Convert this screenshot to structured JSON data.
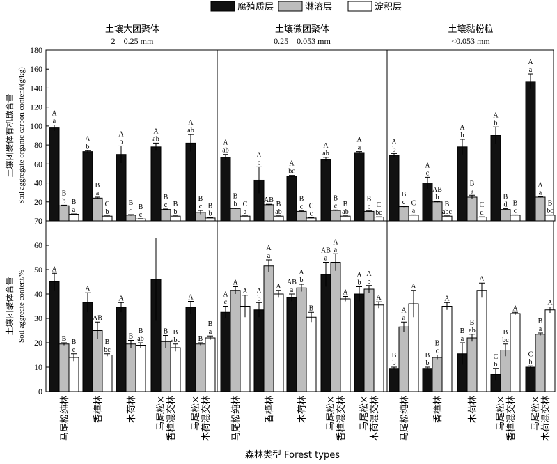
{
  "legend": [
    {
      "label": "腐殖质层",
      "color": "#111111"
    },
    {
      "label": "淋溶层",
      "color": "#bdbdbd"
    },
    {
      "label": "淀积层",
      "color": "#ffffff"
    }
  ],
  "panels": [
    {
      "title": "土壤大团聚体",
      "range": "2—0.25 mm"
    },
    {
      "title": "土壤微团聚体",
      "range": "0.25—0.053 mm"
    },
    {
      "title": "土壤黏粉粒",
      "range": "<0.053 mm"
    }
  ],
  "x_axis_title": "森林类型 Forest types",
  "chart_data": [
    {
      "type": "bar",
      "ylabel_cn": "土壤团聚体有机碳含量",
      "ylabel_en": "Soil aggregate organic carbon content/(g/kg)",
      "ylim": [
        0,
        180
      ],
      "yticks": [
        0,
        20,
        40,
        60,
        80,
        100,
        120,
        140,
        160,
        180
      ],
      "groups": [
        "土壤大团聚体",
        "土壤微团聚体",
        "土壤黏粉粒"
      ],
      "categories": [
        "马尾松纯林",
        "香樟林",
        "木荷林",
        "马尾松×香樟混交林",
        "马尾松×木荷混交林"
      ],
      "series": [
        {
          "name": "腐殖质层",
          "values": [
            [
              98,
              73,
              70,
              78,
              82
            ],
            [
              67,
              43,
              47,
              65,
              72
            ],
            [
              69,
              40,
              78,
              90,
              147
            ]
          ],
          "errors": [
            [
              3,
              1,
              9,
              4,
              9
            ],
            [
              3,
              14,
              1,
              2,
              1
            ],
            [
              2,
              6,
              8,
              9,
              8
            ]
          ]
        },
        {
          "name": "淋溶层",
          "values": [
            [
              16,
              24,
              6,
              12,
              9
            ],
            [
              13,
              17,
              10,
              11,
              10
            ],
            [
              15,
              20,
              25,
              12,
              25
            ]
          ],
          "errors": [
            [
              0.6,
              1,
              0.6,
              0.5,
              2
            ],
            [
              0.5,
              0.5,
              0.5,
              0.5,
              0.5
            ],
            [
              0.5,
              0.5,
              2,
              0.8,
              0.5
            ]
          ]
        },
        {
          "name": "淀积层",
          "values": [
            [
              7,
              5,
              2,
              5,
              3
            ],
            [
              5,
              5,
              3,
              5,
              4
            ],
            [
              6,
              5,
              4,
              6,
              6
            ]
          ],
          "errors": [
            [
              0.3,
              0.3,
              0.3,
              0.3,
              0.3
            ],
            [
              0.3,
              0.3,
              0.3,
              0.3,
              0.3
            ],
            [
              0.3,
              0.3,
              0.3,
              0.3,
              0.3
            ]
          ]
        }
      ],
      "annotations": [
        {
          "upper": [
            "A",
            "B",
            "B"
          ],
          "lower": [
            "a",
            "b",
            "a"
          ]
        },
        {
          "upper": [
            "A",
            "B",
            "C"
          ],
          "lower": [
            "b",
            "a",
            "b"
          ]
        },
        {
          "upper": [
            "A",
            "B",
            "B"
          ],
          "lower": [
            "b",
            "d",
            "c"
          ]
        },
        {
          "upper": [
            "A",
            "B",
            "B"
          ],
          "lower": [
            "ab",
            "c",
            "b"
          ]
        },
        {
          "upper": [
            "A",
            "B",
            "B"
          ],
          "lower": [
            "ab",
            "c",
            "b"
          ]
        },
        {
          "upper": [
            "A",
            "B",
            "C"
          ],
          "lower": [
            "ab",
            "b",
            "a"
          ]
        },
        {
          "upper": [
            "A",
            "AB",
            "B"
          ],
          "lower": [
            "c",
            "",
            "ab"
          ]
        },
        {
          "upper": [
            "A",
            "B",
            "C"
          ],
          "lower": [
            "bc",
            "c",
            "c"
          ]
        },
        {
          "upper": [
            "A",
            "B",
            "B"
          ],
          "lower": [
            "ab",
            "c",
            "ab"
          ]
        },
        {
          "upper": [
            "A",
            "B",
            "C"
          ],
          "lower": [
            "a",
            "c",
            "bc"
          ]
        },
        {
          "upper": [
            "A",
            "B",
            "C"
          ],
          "lower": [
            "b",
            "c",
            "a"
          ]
        },
        {
          "upper": [
            "A",
            "AB",
            "B"
          ],
          "lower": [
            "c",
            "b",
            "abc"
          ]
        },
        {
          "upper": [
            "A",
            "B",
            "C"
          ],
          "lower": [
            "b",
            "a",
            "d"
          ]
        },
        {
          "upper": [
            "A",
            "B",
            "B"
          ],
          "lower": [
            "b",
            "d",
            "c"
          ]
        },
        {
          "upper": [
            "A",
            "A",
            "B"
          ],
          "lower": [
            "a",
            "a",
            "bc"
          ]
        }
      ]
    },
    {
      "type": "bar",
      "ylabel_cn": "土壤团聚体含量",
      "ylabel_en": "Soil aggreate content/%",
      "ylim": [
        0,
        70
      ],
      "yticks": [
        0,
        10,
        20,
        30,
        40,
        50,
        60,
        70
      ],
      "groups": [
        "土壤大团聚体",
        "土壤微团聚体",
        "土壤黏粉粒"
      ],
      "categories": [
        "马尾松纯林",
        "香樟林",
        "木荷林",
        "马尾松×香樟混交林",
        "马尾松×木荷混交林"
      ],
      "series": [
        {
          "name": "腐殖质层",
          "values": [
            [
              45,
              36.5,
              34.5,
              46,
              34.5
            ],
            [
              32.5,
              33.5,
              38.5,
              48,
              40
            ],
            [
              9.5,
              9.5,
              15.5,
              7,
              10
            ]
          ],
          "errors": [
            [
              3.5,
              4,
              2,
              17,
              2.5
            ],
            [
              2.5,
              3,
              1.5,
              5,
              3
            ],
            [
              0.5,
              0.5,
              4.5,
              2.5,
              0.5
            ]
          ]
        },
        {
          "name": "淋溶层",
          "values": [
            [
              19.5,
              25,
              19.5,
              20.5,
              19.5
            ],
            [
              41.5,
              51.5,
              42.5,
              53,
              42
            ],
            [
              26.5,
              14,
              22,
              17,
              23.5
            ]
          ],
          "errors": [
            [
              0.5,
              3.5,
              1.5,
              2.5,
              0.5
            ],
            [
              1.5,
              2.5,
              1.5,
              3.5,
              1.5
            ],
            [
              2,
              1,
              1.5,
              2.5,
              0.5
            ]
          ]
        },
        {
          "name": "淀积层",
          "values": [
            [
              14,
              15,
              19,
              18,
              22
            ],
            [
              35,
              40,
              30.5,
              38,
              35.5
            ],
            [
              36,
              35,
              41.5,
              32,
              33.5
            ]
          ],
          "errors": [
            [
              1.5,
              0.5,
              1,
              1.5,
              0.8
            ],
            [
              4.5,
              1.5,
              2,
              1,
              1.3
            ],
            [
              5.5,
              1.5,
              3,
              0.5,
              1.2
            ]
          ]
        }
      ],
      "annotations": [
        {
          "upper": [
            "A",
            "B",
            "B"
          ],
          "lower": [
            "",
            "",
            "c"
          ]
        },
        {
          "upper": [
            "A",
            "AB",
            "B"
          ],
          "lower": [
            "",
            "",
            "bc"
          ]
        },
        {
          "upper": [
            "A",
            "B",
            "B"
          ],
          "lower": [
            "",
            "",
            "ab"
          ]
        },
        {
          "upper": [
            "",
            "B",
            "B"
          ],
          "lower": [
            "",
            "",
            "abc"
          ]
        },
        {
          "upper": [
            "A",
            "B",
            "B"
          ],
          "lower": [
            "",
            "",
            "a"
          ]
        },
        {
          "upper": [
            "A",
            "A",
            "A"
          ],
          "lower": [
            "c",
            "",
            ""
          ]
        },
        {
          "upper": [
            "A",
            "A",
            "A"
          ],
          "lower": [
            "b",
            "a",
            ""
          ]
        },
        {
          "upper": [
            "AB",
            "A",
            "B"
          ],
          "lower": [
            "a",
            "b",
            ""
          ]
        },
        {
          "upper": [
            "AB",
            "A",
            "A"
          ],
          "lower": [
            "a",
            "a",
            ""
          ]
        },
        {
          "upper": [
            "A",
            "A",
            "A"
          ],
          "lower": [
            "b",
            "b",
            ""
          ]
        },
        {
          "upper": [
            "B",
            "A",
            "A"
          ],
          "lower": [
            "b",
            "a",
            ""
          ]
        },
        {
          "upper": [
            "B",
            "B",
            "A"
          ],
          "lower": [
            "b",
            "c",
            ""
          ]
        },
        {
          "upper": [
            "B",
            "B",
            "A"
          ],
          "lower": [
            "a",
            "ab",
            ""
          ]
        },
        {
          "upper": [
            "C",
            "B",
            "A"
          ],
          "lower": [
            "b",
            "bc",
            ""
          ]
        },
        {
          "upper": [
            "C",
            "B",
            "A"
          ],
          "lower": [
            "b",
            "a",
            ""
          ]
        }
      ]
    }
  ]
}
